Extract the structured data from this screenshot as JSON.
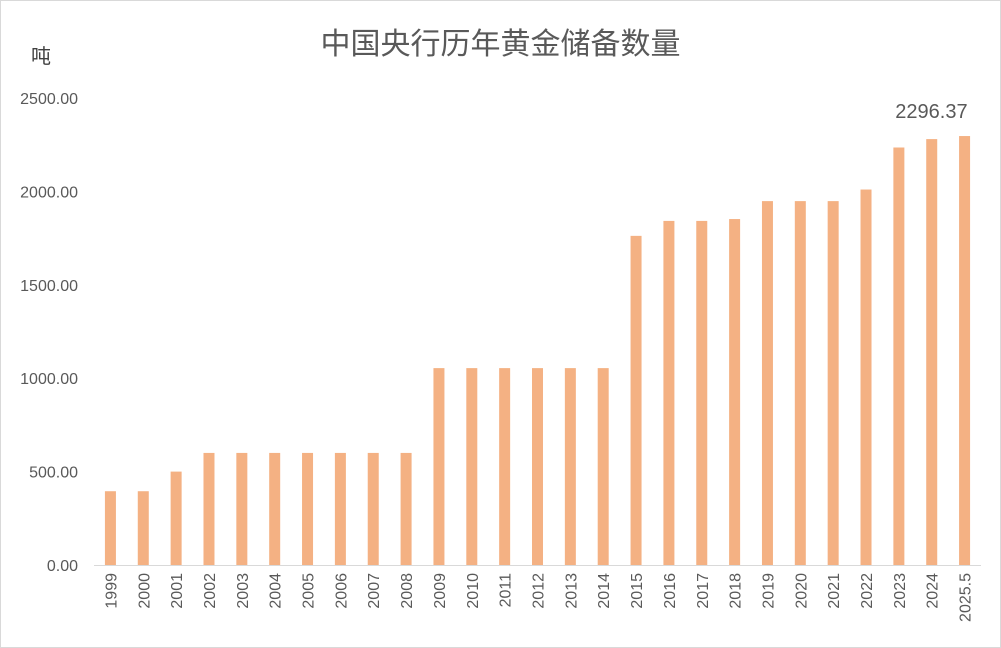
{
  "chart_data": {
    "type": "bar",
    "title": "中国央行历年黄金储备数量",
    "ylabel": "吨",
    "xlabel": "",
    "ylim": [
      0,
      2500
    ],
    "yticks": [
      "0.00",
      "500.00",
      "1000.00",
      "1500.00",
      "2000.00",
      "2500.00"
    ],
    "grid": false,
    "legend": "none",
    "bar_color": "#F4B183",
    "categories": [
      "1999",
      "2000",
      "2001",
      "2002",
      "2003",
      "2004",
      "2005",
      "2006",
      "2007",
      "2008",
      "2009",
      "2010",
      "2011",
      "2012",
      "2013",
      "2014",
      "2015",
      "2016",
      "2017",
      "2018",
      "2019",
      "2020",
      "2021",
      "2022",
      "2023",
      "2024",
      "2025.5"
    ],
    "values": [
      395,
      395,
      500,
      600,
      600,
      600,
      600,
      600,
      600,
      600,
      1054,
      1054,
      1054,
      1054,
      1054,
      1054,
      1762,
      1842,
      1842,
      1852,
      1948,
      1948,
      1948,
      2010,
      2235,
      2280,
      2296.37
    ],
    "data_labels": [
      {
        "index": 26,
        "text": "2296.37"
      }
    ]
  }
}
